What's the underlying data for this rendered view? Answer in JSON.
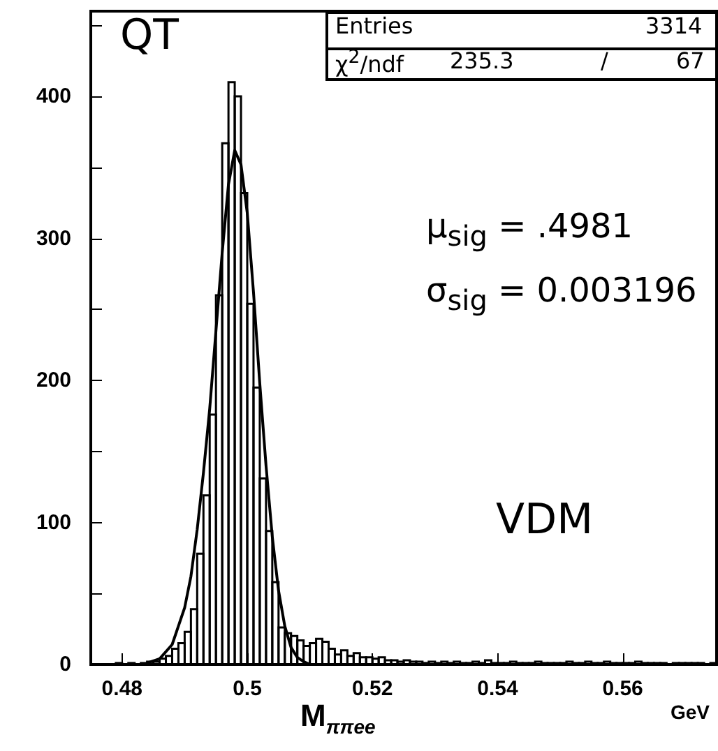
{
  "chart_data": {
    "type": "histogram",
    "xlabel": "M$_{ππee}$",
    "annotations": [
      "QT",
      "Entries",
      "3314",
      "χ$^{2}$/ndf",
      "235.3",
      "/",
      "67",
      "μ$_{sig}$ = .4981",
      "σ$_{sig}$ = 0.003196",
      "VDM",
      "GeV"
    ],
    "bins": [
      0.475,
      0.476,
      0.477,
      0.478,
      0.479,
      0.48,
      0.481,
      0.482,
      0.483,
      0.484,
      0.485,
      0.486,
      0.487,
      0.488,
      0.489,
      0.49,
      0.491,
      0.492,
      0.493,
      0.494,
      0.495,
      0.496,
      0.497,
      0.498,
      0.499,
      0.5,
      0.501,
      0.502,
      0.503,
      0.504,
      0.505,
      0.506,
      0.507,
      0.508,
      0.509,
      0.51,
      0.511,
      0.512,
      0.513,
      0.514,
      0.515,
      0.516,
      0.517,
      0.518,
      0.519,
      0.52,
      0.521,
      0.522,
      0.523,
      0.524,
      0.525,
      0.526,
      0.527,
      0.528,
      0.529,
      0.53,
      0.531,
      0.532,
      0.533,
      0.534,
      0.535,
      0.536,
      0.537,
      0.538,
      0.539,
      0.54,
      0.541,
      0.542,
      0.543,
      0.544,
      0.545,
      0.546,
      0.547,
      0.548,
      0.549,
      0.55,
      0.551,
      0.552,
      0.553,
      0.554,
      0.555,
      0.556,
      0.557,
      0.558,
      0.559,
      0.56,
      0.561,
      0.562,
      0.563,
      0.564,
      0.565,
      0.566,
      0.567,
      0.568,
      0.569,
      0.57,
      0.571,
      0.572,
      0.573,
      0.574,
      0.575
    ],
    "series": [
      {
        "color": "#000000",
        "values": [
          0,
          0,
          0,
          0,
          1,
          0,
          1,
          0,
          1,
          2,
          2,
          4,
          6,
          11,
          15,
          23,
          39,
          78,
          119,
          176,
          260,
          367,
          410,
          400,
          332,
          254,
          195,
          131,
          94,
          58,
          26,
          22,
          20,
          17,
          13,
          15,
          18,
          16,
          11,
          7,
          10,
          6,
          8,
          5,
          5,
          4,
          5,
          3,
          3,
          2,
          3,
          2,
          2,
          1,
          2,
          1,
          2,
          1,
          2,
          1,
          1,
          2,
          1,
          3,
          1,
          1,
          1,
          2,
          1,
          1,
          1,
          2,
          1,
          1,
          1,
          1,
          2,
          1,
          1,
          2,
          1,
          1,
          2,
          1,
          1,
          1,
          1,
          2,
          1,
          1,
          1,
          1,
          0,
          1,
          1,
          1,
          1,
          1,
          0,
          1
        ]
      },
      {
        "type": "line",
        "color": "#000000",
        "x": [
          0.484,
          0.486,
          0.488,
          0.49,
          0.491,
          0.492,
          0.493,
          0.494,
          0.495,
          0.496,
          0.497,
          0.498,
          0.499,
          0.5,
          0.501,
          0.502,
          0.503,
          0.504,
          0.505,
          0.506,
          0.507,
          0.508,
          0.509,
          0.51
        ],
        "values": [
          1,
          4,
          14,
          40,
          62,
          95,
          135,
          180,
          235,
          290,
          338,
          362,
          352,
          318,
          262,
          198,
          140,
          90,
          52,
          27,
          12,
          5,
          2,
          0
        ]
      }
    ],
    "xlim": [
      0.475,
      0.575
    ],
    "xticks": [
      0.48,
      0.5,
      0.52,
      0.54,
      0.56
    ],
    "ylim": [
      0,
      460
    ],
    "yticks": [
      0,
      {
        "value": 50,
        "label": null
      },
      100,
      {
        "value": 150,
        "label": null
      },
      200,
      {
        "value": 250,
        "label": null
      },
      300,
      {
        "value": 350,
        "label": null
      },
      400,
      {
        "value": 450,
        "label": null
      }
    ],
    "grid": false,
    "marker": "none",
    "line_style": "solid"
  }
}
